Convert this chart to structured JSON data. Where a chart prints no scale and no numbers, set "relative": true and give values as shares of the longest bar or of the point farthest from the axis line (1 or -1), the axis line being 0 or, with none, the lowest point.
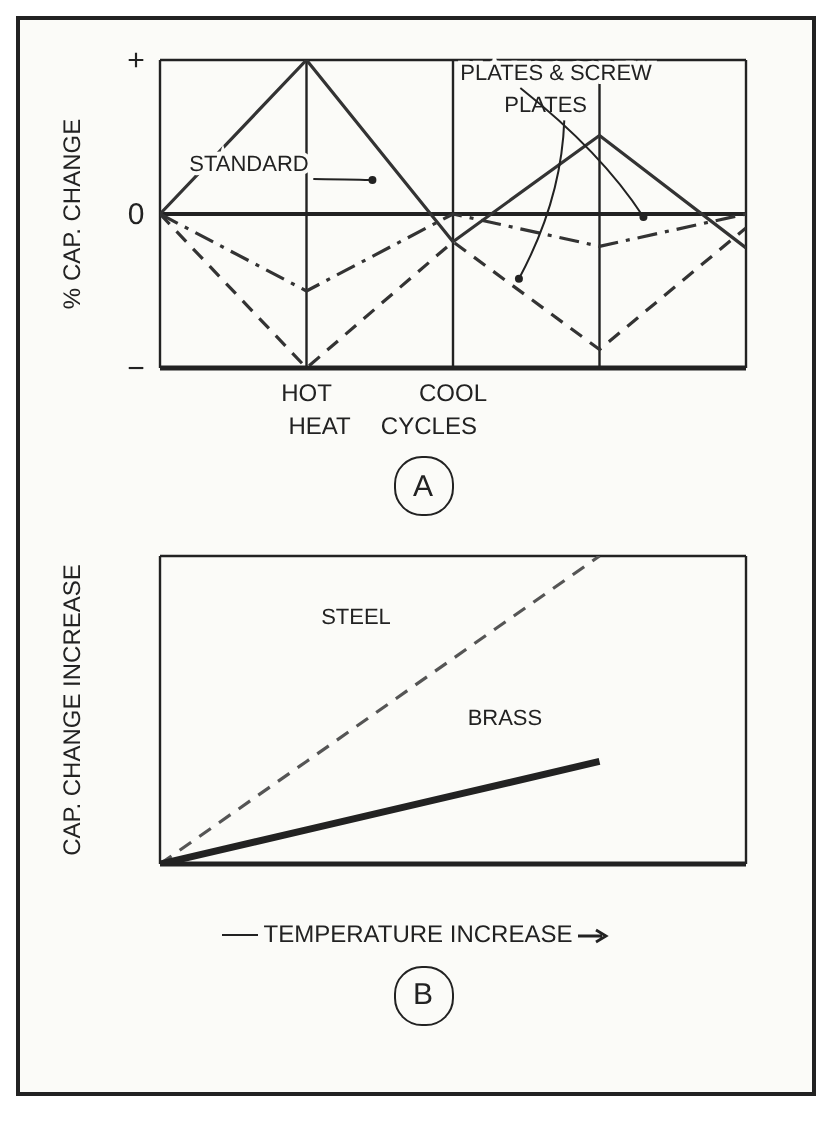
{
  "chart_data": [
    {
      "type": "line",
      "title": "A",
      "ylabel": "% CAP. CHANGE",
      "xlabel": "HEAT CYCLES",
      "categories": [
        null,
        "HOT",
        "COOL",
        null,
        null
      ],
      "series": [
        {
          "name": "STANDARD",
          "color": "#333333",
          "line_style": "solid",
          "values": [
            0,
            1,
            -0.18,
            0.51,
            -0.22
          ]
        },
        {
          "name": "PLATES & SCREW",
          "color": "#333333",
          "line_style": "dashdot",
          "values": [
            0,
            -0.5,
            0,
            -0.21,
            0
          ]
        },
        {
          "name": "PLATES",
          "color": "#333333",
          "line_style": "dashed",
          "values": [
            0,
            -1,
            -0.18,
            -0.88,
            -0.09
          ]
        }
      ],
      "relative": true,
      "annotations": [
        "+",
        "0",
        "−"
      ],
      "grid": true,
      "marker": "none"
    },
    {
      "type": "line",
      "title": "B",
      "ylabel": "CAP. CHANGE INCREASE",
      "xlabel": "TEMPERATURE INCREASE",
      "relative": true,
      "categories": [
        null,
        null,
        null,
        null,
        null
      ],
      "series": [
        {
          "name": "STEEL",
          "color": "#555555",
          "line_style": "dashed",
          "values": [
            0,
            0.333,
            0.667,
            1,
            null
          ]
        },
        {
          "name": "BRASS",
          "color": "#222222",
          "line_style": "solid",
          "values": [
            0,
            0.111,
            0.222,
            0.333,
            null
          ]
        }
      ],
      "grid": true,
      "tick_labels": false,
      "marker": "none"
    }
  ]
}
